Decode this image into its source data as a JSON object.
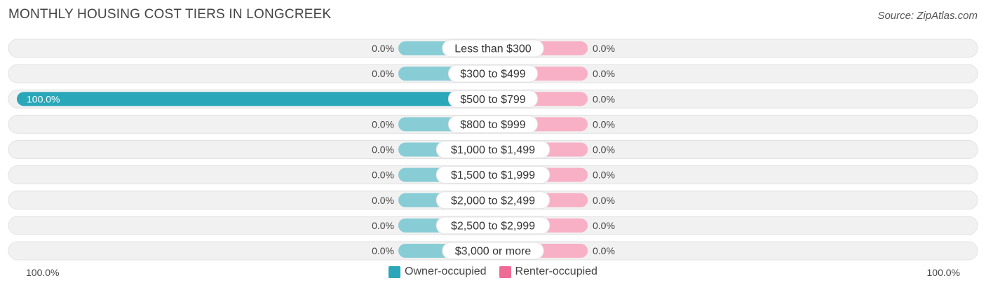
{
  "header": {
    "title": "MONTHLY HOUSING COST TIERS IN LONGCREEK",
    "source": "Source: ZipAtlas.com"
  },
  "colors": {
    "owner": "#2aa7b8",
    "owner_light": "#88cdd5",
    "renter": "#f06a96",
    "renter_light": "#f8b0c6",
    "track": "#f1f1f1"
  },
  "chart_data": {
    "type": "bar",
    "orientation": "horizontal-diverging",
    "categories": [
      "Less than $300",
      "$300 to $499",
      "$500 to $799",
      "$800 to $999",
      "$1,000 to $1,499",
      "$1,500 to $1,999",
      "$2,000 to $2,499",
      "$2,500 to $2,999",
      "$3,000 or more"
    ],
    "series": [
      {
        "name": "Owner-occupied",
        "values": [
          0.0,
          0.0,
          100.0,
          0.0,
          0.0,
          0.0,
          0.0,
          0.0,
          0.0
        ],
        "labels": [
          "0.0%",
          "0.0%",
          "100.0%",
          "0.0%",
          "0.0%",
          "0.0%",
          "0.0%",
          "0.0%",
          "0.0%"
        ]
      },
      {
        "name": "Renter-occupied",
        "values": [
          0.0,
          0.0,
          0.0,
          0.0,
          0.0,
          0.0,
          0.0,
          0.0,
          0.0
        ],
        "labels": [
          "0.0%",
          "0.0%",
          "0.0%",
          "0.0%",
          "0.0%",
          "0.0%",
          "0.0%",
          "0.0%",
          "0.0%"
        ]
      }
    ],
    "xlim": [
      -100,
      100
    ],
    "axis_labels": {
      "left": "100.0%",
      "right": "100.0%"
    },
    "legend": {
      "placement": "bottom-center"
    }
  }
}
